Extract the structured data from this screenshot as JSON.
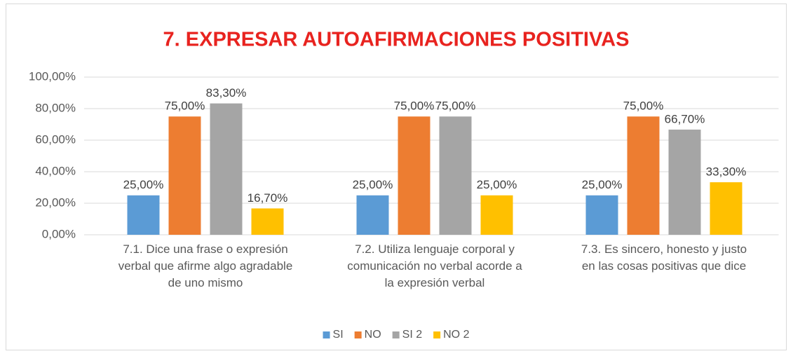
{
  "chart_data": {
    "type": "bar",
    "title": "7. EXPRESAR AUTOAFIRMACIONES POSITIVAS",
    "categories": [
      "7.1. Dice una frase o expresión\nverbal que afirme algo agradable\nde uno mismo",
      "7.2. Utiliza lenguaje corporal y\ncomunicación no verbal acorde a\nla expresión verbal",
      "7.3. Es sincero, honesto  y justo\nen las cosas positivas que dice"
    ],
    "series": [
      {
        "name": "SI",
        "color": "#5b9bd5",
        "values": [
          25,
          25,
          25
        ],
        "value_labels": [
          "25,00%",
          "25,00%",
          "25,00%"
        ]
      },
      {
        "name": "NO",
        "color": "#ed7d31",
        "values": [
          75,
          75,
          75
        ],
        "value_labels": [
          "75,00%",
          "75,00%",
          "75,00%"
        ]
      },
      {
        "name": "SI 2",
        "color": "#a5a5a5",
        "values": [
          83.3,
          75,
          66.7
        ],
        "value_labels": [
          "83,30%",
          "75,00%",
          "66,70%"
        ]
      },
      {
        "name": "NO 2",
        "color": "#ffc000",
        "values": [
          16.7,
          25,
          33.3
        ],
        "value_labels": [
          "16,70%",
          "25,00%",
          "33,30%"
        ]
      }
    ],
    "ylim": [
      0,
      100
    ],
    "yticks": [
      {
        "value": 0,
        "label": "0,00%"
      },
      {
        "value": 20,
        "label": "20,00%"
      },
      {
        "value": 40,
        "label": "40,00%"
      },
      {
        "value": 60,
        "label": "60,00%"
      },
      {
        "value": 80,
        "label": "80,00%"
      },
      {
        "value": 100,
        "label": "100,00%"
      }
    ],
    "grid": true,
    "legend": "bottom"
  }
}
